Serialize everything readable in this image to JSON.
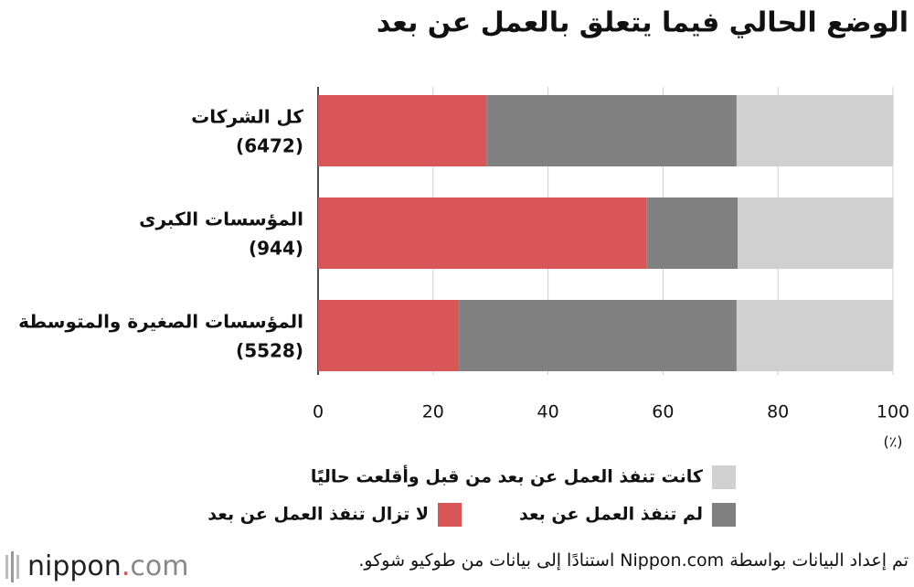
{
  "chart_data": {
    "type": "stacked-bar-horizontal",
    "title": "الوضع الحالي فيما يتعلق بالعمل عن بعد",
    "categories": [
      [
        "كل الشركات",
        "(6472)"
      ],
      [
        "المؤسسات الكبرى",
        "(944)"
      ],
      [
        "المؤسسات الصغيرة والمتوسطة",
        "(5528)"
      ]
    ],
    "series": [
      {
        "name": "لا تزال تنفذ العمل عن بعد",
        "color": "#d85558",
        "values": [
          29.3,
          57.1,
          24.5
        ]
      },
      {
        "name": "لم تنفذ العمل عن بعد",
        "color": "#808080",
        "values": [
          43.5,
          15.9,
          48.3
        ]
      },
      {
        "name": "كانت تنفذ العمل عن بعد من قبل وأقلعت حاليًا",
        "color": "#d0d0d0",
        "values": [
          27.2,
          27.0,
          27.2
        ]
      }
    ],
    "xlim": [
      0,
      100
    ],
    "xticks": [
      0,
      20,
      40,
      60,
      80,
      100
    ],
    "x_unit": "(٪)",
    "grid": true,
    "source": "تم إعداد البيانات بواسطة Nippon.com استنادًا إلى بيانات من طوكيو شوكو.",
    "logo": [
      "nippon",
      ".",
      "com"
    ]
  }
}
